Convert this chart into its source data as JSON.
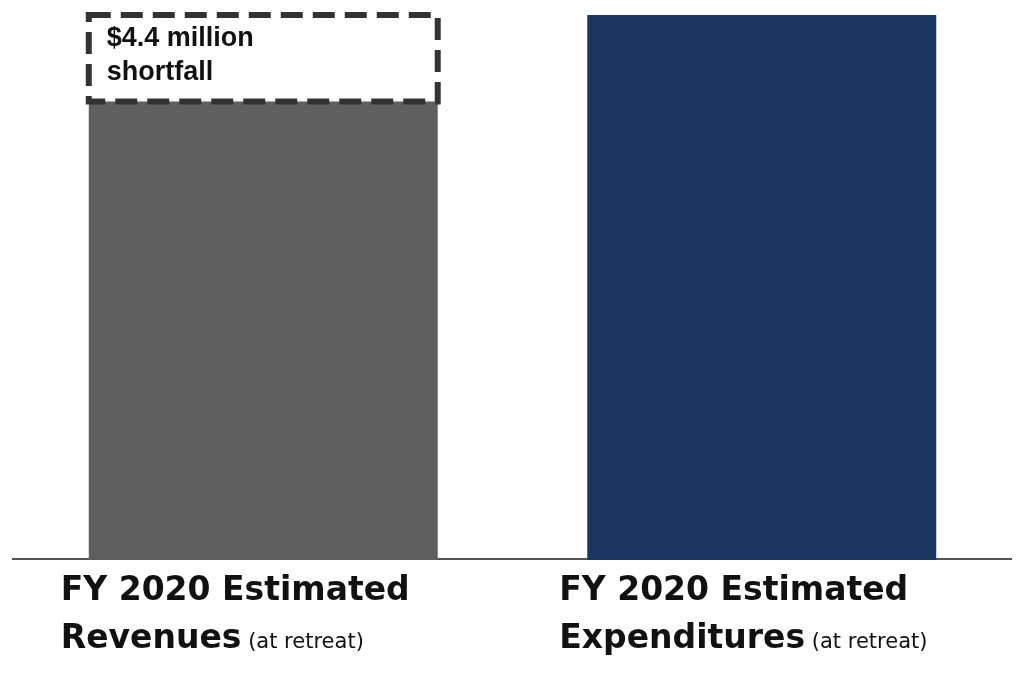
{
  "chart_data": {
    "type": "bar",
    "stacked": true,
    "categories": [
      "FY 2020 Estimated Revenues (at retreat)",
      "FY 2020 Estimated Expenditures (at retreat)"
    ],
    "ylim": [
      0,
      27.7
    ],
    "tick_labels": false,
    "series": [
      {
        "colors": [
          "#5f5f5f",
          "#1c3664"
        ],
        "values": [
          23.3,
          27.7
        ]
      },
      {
        "color": "#333333",
        "line_style": "dashed",
        "values": [
          4.4,
          null
        ],
        "value_labels": [
          "$4.4 million shortfall",
          null
        ]
      }
    ],
    "legend": false,
    "grid": false
  }
}
